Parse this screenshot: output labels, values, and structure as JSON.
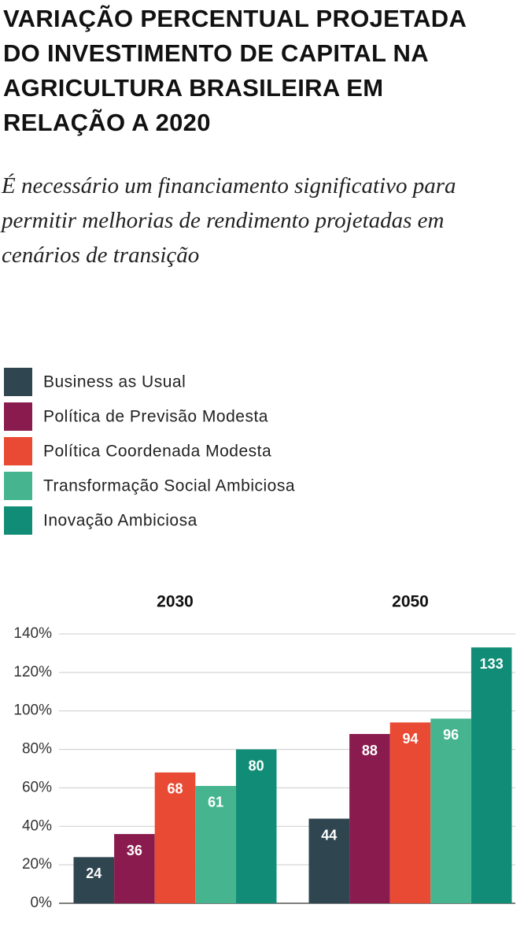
{
  "chart_data": {
    "type": "bar",
    "title": "VARIAÇÃO PERCENTUAL PROJETADA DO INVESTIMENTO DE CAPITAL NA AGRICULTURA BRASILEIRA EM RELAÇÃO A 2020",
    "subtitle": "É necessário um financiamento significativo para permitir melhorias de rendimento projetadas em cenários de transição",
    "categories": [
      "2030",
      "2050"
    ],
    "series": [
      {
        "name": "Business as Usual",
        "color": "#2f4550",
        "values": [
          24,
          44
        ]
      },
      {
        "name": "Política de Previsão Modesta",
        "color": "#8a1b4e",
        "values": [
          36,
          88
        ]
      },
      {
        "name": "Política Coordenada Modesta",
        "color": "#e84a33",
        "values": [
          68,
          94
        ]
      },
      {
        "name": "Transformação Social Ambiciosa",
        "color": "#46b58f",
        "values": [
          61,
          96
        ]
      },
      {
        "name": "Inovação Ambiciosa",
        "color": "#118d77",
        "values": [
          80,
          133
        ]
      }
    ],
    "ylim": [
      0,
      140
    ],
    "yticks": [
      {
        "value": 0,
        "label": "0%"
      },
      {
        "value": 20,
        "label": "20%"
      },
      {
        "value": 40,
        "label": "40%"
      },
      {
        "value": 60,
        "label": "60%"
      },
      {
        "value": 80,
        "label": "80%"
      },
      {
        "value": 100,
        "label": "100%"
      },
      {
        "value": 120,
        "label": "120%"
      },
      {
        "value": 140,
        "label": "140%"
      }
    ],
    "grid": true
  }
}
